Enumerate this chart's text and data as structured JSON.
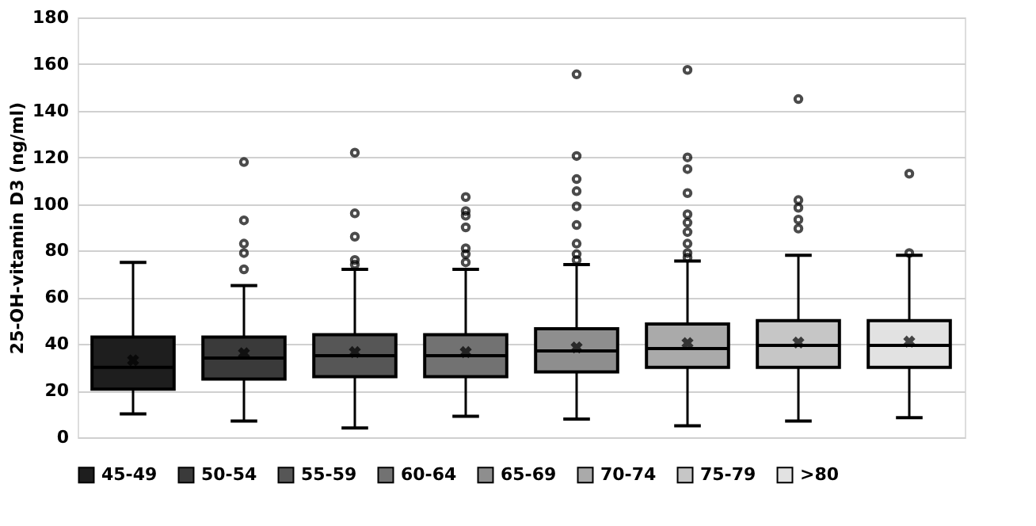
{
  "chart_data": {
    "type": "box",
    "ylabel": "25-OH-vitamin D3 (ng/ml)",
    "categories": [
      null
    ],
    "series": [
      {
        "name": "45-49",
        "color": "#1e1e1e",
        "boxes": [
          {
            "low": 10,
            "q1": 20.6,
            "median": 30,
            "q3": 43,
            "high": 75,
            "mean": 33
          }
        ]
      },
      {
        "name": "50-54",
        "color": "#3a3a3a",
        "boxes": [
          {
            "low": 7,
            "q1": 25,
            "median": 34,
            "q3": 43,
            "high": 65,
            "mean": 36,
            "outliers": [
              118,
              93,
              83,
              79,
              72
            ]
          }
        ]
      },
      {
        "name": "55-59",
        "color": "#565656",
        "boxes": [
          {
            "low": 4,
            "q1": 26,
            "median": 35,
            "q3": 44,
            "high": 72,
            "mean": 36.5,
            "outliers": [
              122,
              96,
              86,
              76,
              74
            ]
          }
        ]
      },
      {
        "name": "60-64",
        "color": "#727272",
        "boxes": [
          {
            "low": 9,
            "q1": 26,
            "median": 35,
            "q3": 44,
            "high": 72,
            "mean": 36.5,
            "outliers": [
              103,
              97,
              95,
              90,
              81,
              78.5,
              75
            ]
          }
        ]
      },
      {
        "name": "65-69",
        "color": "#8e8e8e",
        "boxes": [
          {
            "low": 7.8,
            "q1": 28,
            "median": 37,
            "q3": 46.5,
            "high": 74,
            "mean": 38.5,
            "outliers": [
              155.6,
              120.6,
              110.7,
              105.5,
              99,
              91,
              83,
              78.5,
              76
            ]
          }
        ]
      },
      {
        "name": "70-74",
        "color": "#aaaaaa",
        "boxes": [
          {
            "low": 4.9,
            "q1": 30,
            "median": 38,
            "q3": 48.6,
            "high": 75.6,
            "mean": 40.4,
            "outliers": [
              157.5,
              120,
              115,
              104.7,
              95.6,
              92,
              88,
              83,
              79,
              77
            ]
          }
        ]
      },
      {
        "name": "75-79",
        "color": "#c6c6c6",
        "boxes": [
          {
            "low": 7,
            "q1": 30,
            "median": 39.4,
            "q3": 50,
            "high": 78,
            "mean": 40.6,
            "outliers": [
              145,
              101.7,
              98.4,
              93.3,
              89.5
            ]
          }
        ]
      },
      {
        "name": ">80",
        "color": "#e2e2e2",
        "boxes": [
          {
            "low": 8.4,
            "q1": 30,
            "median": 39.4,
            "q3": 50,
            "high": 78,
            "mean": 41,
            "outliers": [
              113,
              79
            ]
          }
        ]
      }
    ],
    "ylim": [
      0,
      180
    ],
    "yticks": [
      0,
      20,
      40,
      60,
      80,
      100,
      120,
      140,
      160,
      180
    ],
    "grid": "y",
    "legend": "bottom",
    "tick_labels": "y"
  }
}
